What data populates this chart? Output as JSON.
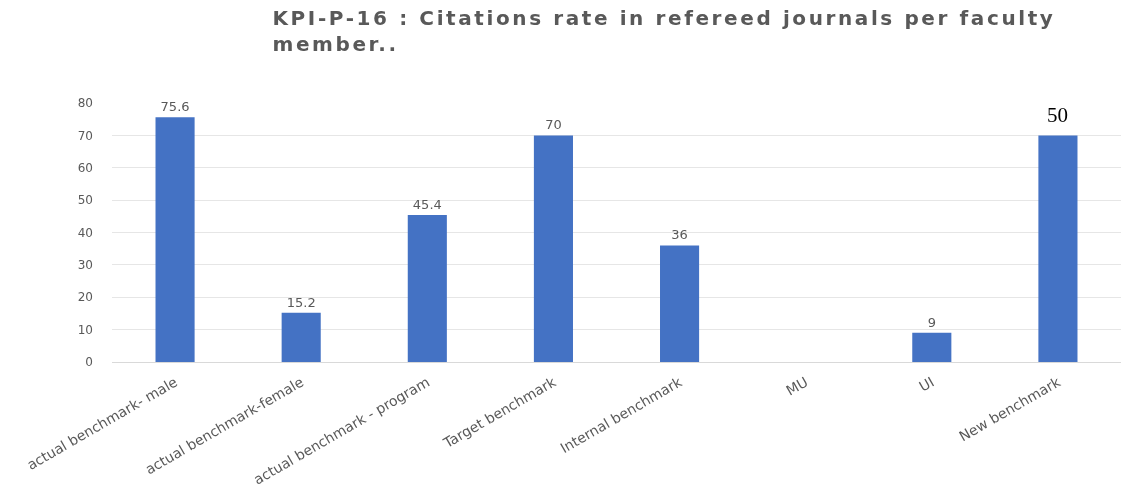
{
  "chart_data": {
    "type": "bar",
    "title": "KPI-P-16 : Citations rate in refereed journals per faculty member..",
    "categories": [
      "actual benchmark- male",
      "actual benchmark-female",
      "actual benchmark - program",
      "Target benchmark",
      "Internal benchmark",
      "MU",
      "UI",
      "New benchmark"
    ],
    "values": [
      75.6,
      15.2,
      45.4,
      70,
      36,
      null,
      9,
      70
    ],
    "value_labels": [
      "75.6",
      "15.2",
      "45.4",
      "70",
      "36",
      null,
      "9",
      null
    ],
    "annotations": [
      {
        "text": "50",
        "x": "New benchmark",
        "y": 70
      }
    ],
    "color": "#4472c4",
    "ylim": [
      0,
      80
    ],
    "yticks": [
      0,
      10,
      20,
      30,
      40,
      50,
      60,
      70,
      80
    ],
    "grid": "y"
  }
}
